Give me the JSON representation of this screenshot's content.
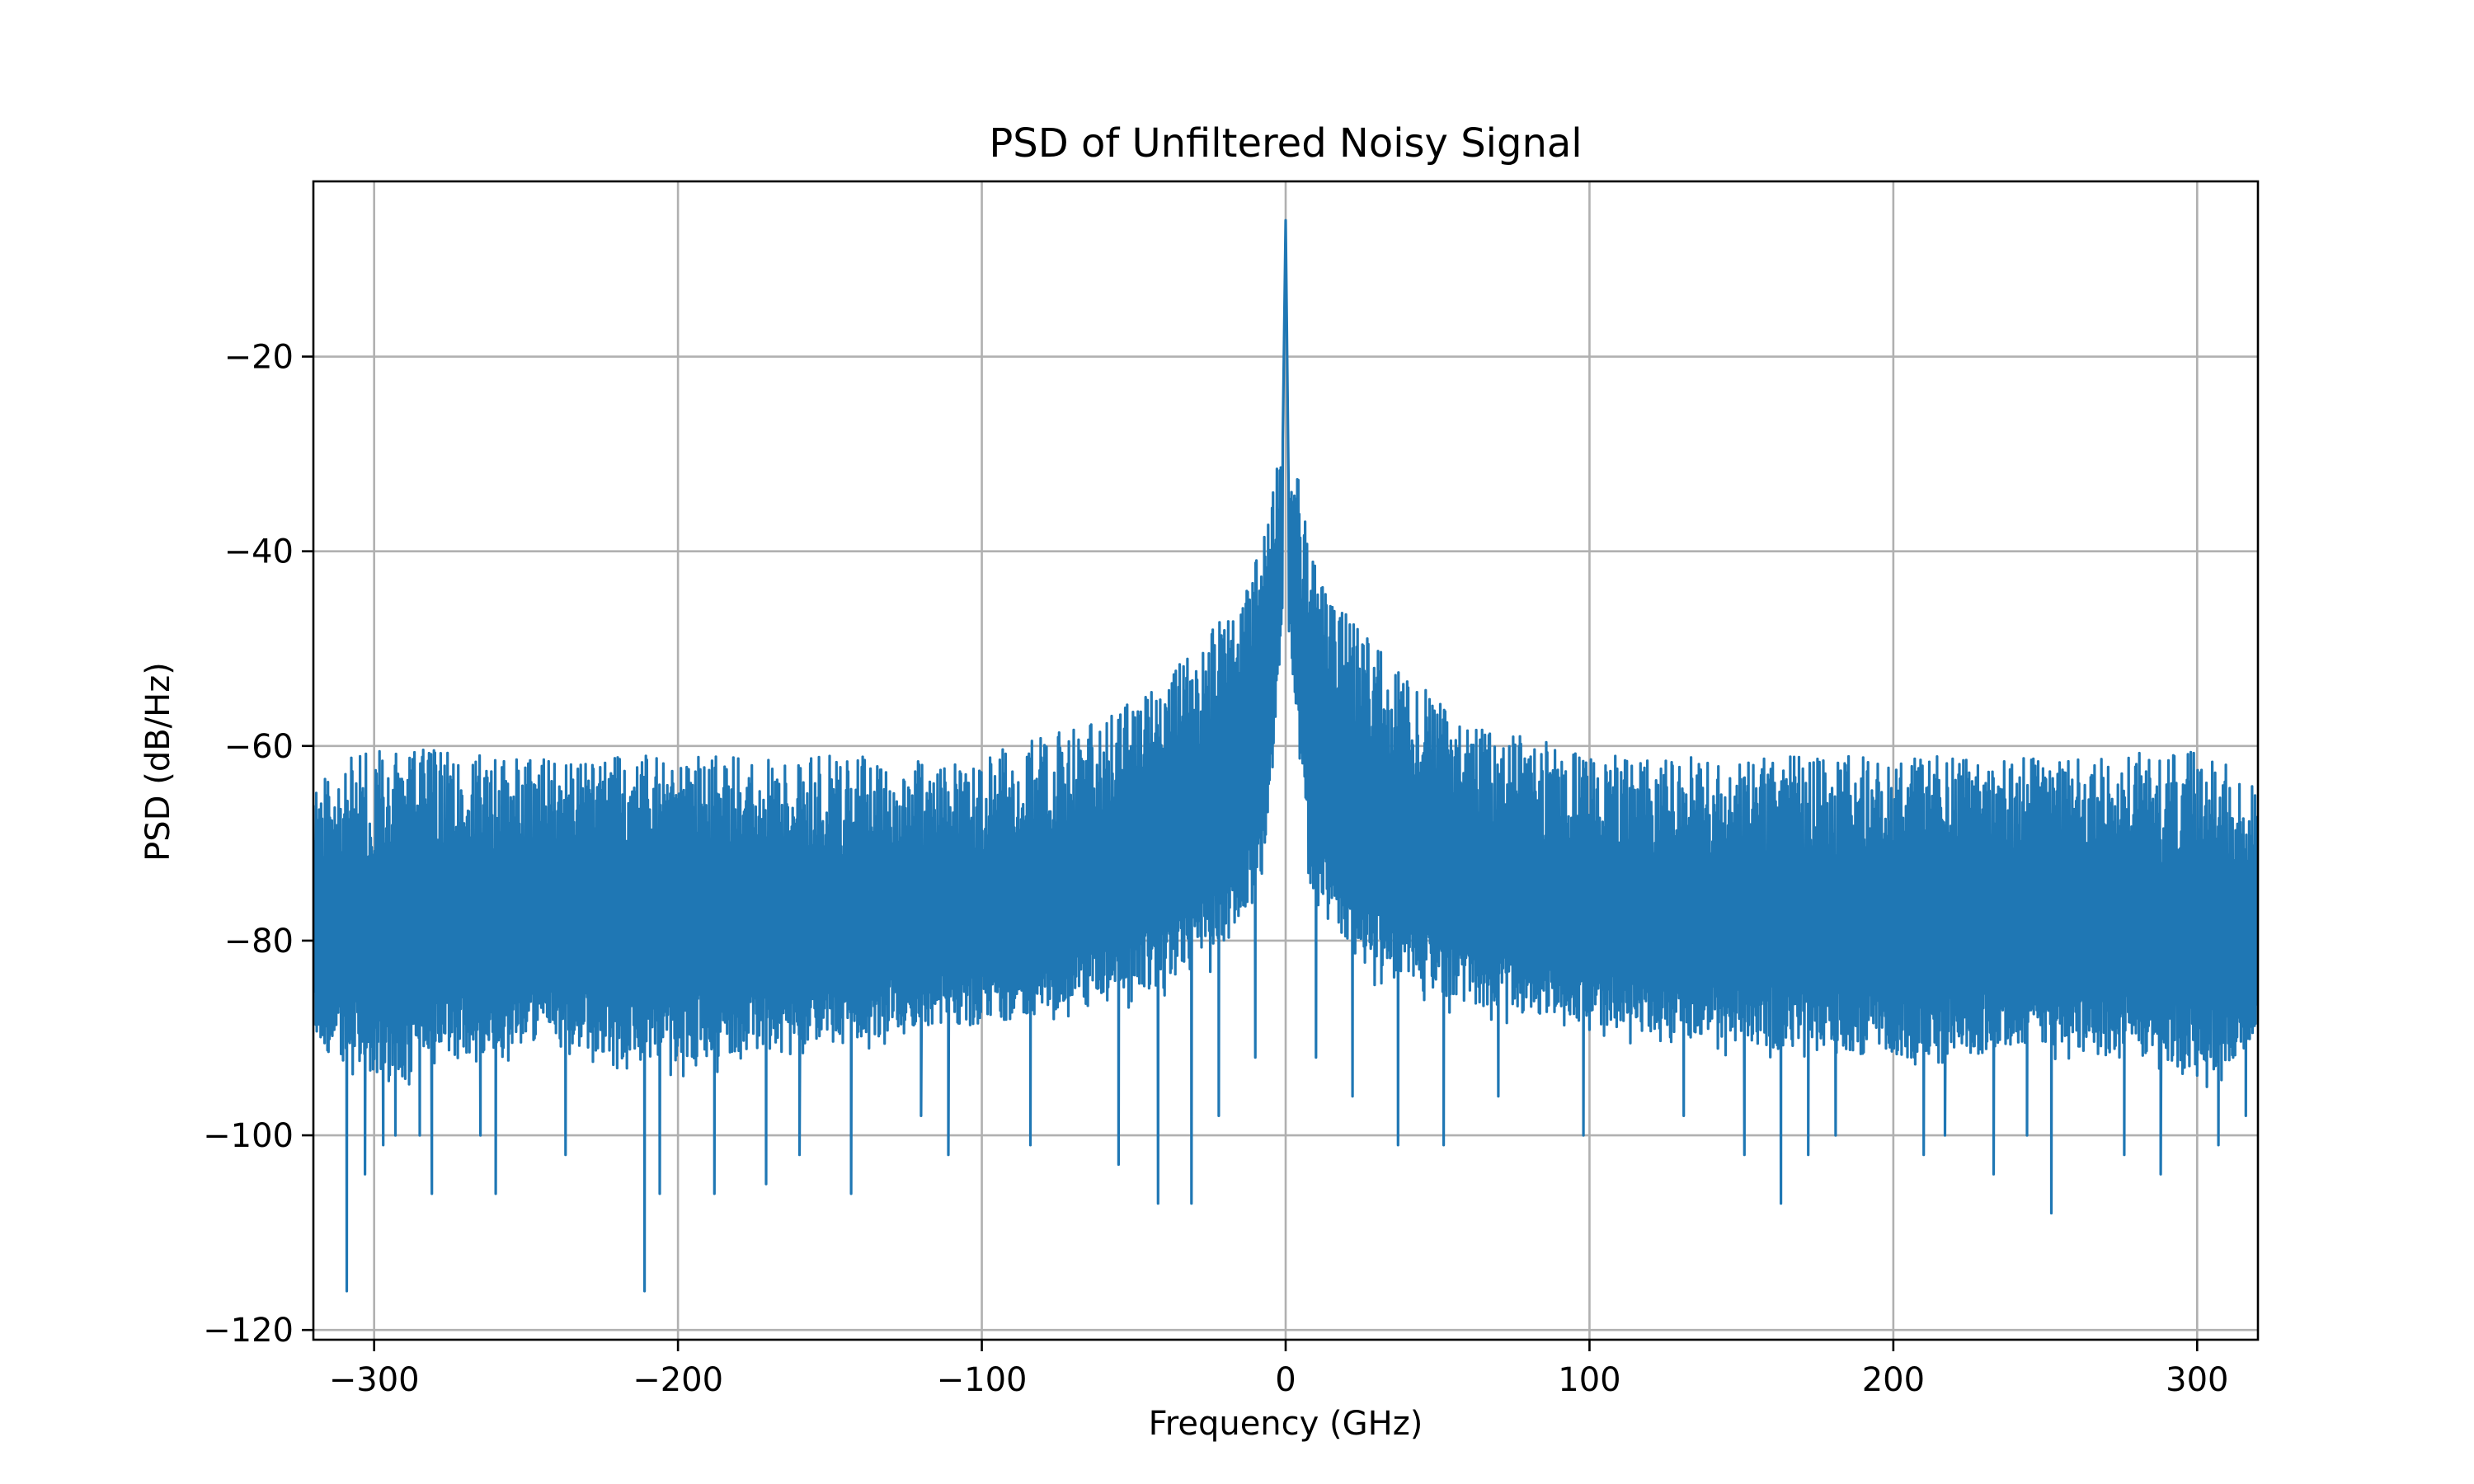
{
  "chart_data": {
    "type": "line",
    "title": "PSD of Unfiltered Noisy Signal",
    "xlabel": "Frequency (GHz)",
    "ylabel": "PSD (dB/Hz)",
    "xlim": [
      -320,
      320
    ],
    "ylim": [
      -121,
      -2
    ],
    "xticks": [
      -300,
      -200,
      -100,
      0,
      100,
      200,
      300
    ],
    "yticks": [
      -20,
      -40,
      -60,
      -80,
      -100,
      -120
    ],
    "xtick_labels": [
      "−300",
      "−200",
      "−100",
      "0",
      "100",
      "200",
      "300"
    ],
    "ytick_labels": [
      "−20",
      "−40",
      "−60",
      "−80",
      "−100",
      "−120"
    ],
    "grid": true,
    "line_color": "#1f77b4",
    "series": [
      {
        "envelope": {
          "x": [
            -320,
            -300,
            -250,
            -200,
            -150,
            -100,
            -60,
            -40,
            -25,
            -15,
            -8,
            -4,
            -2,
            -1,
            0,
            1,
            2,
            4,
            8,
            15,
            25,
            40,
            60,
            100,
            150,
            200,
            250,
            300,
            320
          ],
          "upper": [
            -63,
            -60,
            -61,
            -61,
            -61,
            -61,
            -57,
            -53,
            -48,
            -44,
            -40,
            -32,
            -30,
            -29,
            -6,
            -29,
            -30,
            -32,
            -40,
            -44,
            -48,
            -53,
            -57,
            -61,
            -61,
            -61,
            -61,
            -60,
            -64
          ],
          "lower": [
            -92,
            -96,
            -92,
            -94,
            -92,
            -90,
            -88,
            -86,
            -84,
            -80,
            -76,
            -62,
            -54,
            -50,
            -40,
            -50,
            -54,
            -62,
            -76,
            -80,
            -84,
            -86,
            -88,
            -90,
            -92,
            -94,
            -92,
            -96,
            -92
          ]
        },
        "dips": {
          "x": [
            -309,
            -303,
            -297,
            -293,
            -285,
            -281,
            -265,
            -260,
            -237,
            -211,
            -206,
            -188,
            -171,
            -160,
            -143,
            -120,
            -111,
            -84,
            -55,
            -42,
            -31,
            -22,
            -10,
            10,
            22,
            37,
            52,
            70,
            98,
            131,
            151,
            163,
            172,
            181,
            210,
            217,
            233,
            244,
            252,
            276,
            288,
            307,
            316
          ],
          "y": [
            -116,
            -104,
            -101,
            -100,
            -100,
            -106,
            -100,
            -106,
            -102,
            -116,
            -106,
            -106,
            -105,
            -102,
            -106,
            -98,
            -102,
            -101,
            -103,
            -107,
            -107,
            -98,
            -92,
            -92,
            -96,
            -101,
            -101,
            -96,
            -100,
            -98,
            -102,
            -107,
            -102,
            -100,
            -102,
            -100,
            -104,
            -100,
            -108,
            -102,
            -104,
            -101,
            -98
          ]
        }
      }
    ]
  }
}
